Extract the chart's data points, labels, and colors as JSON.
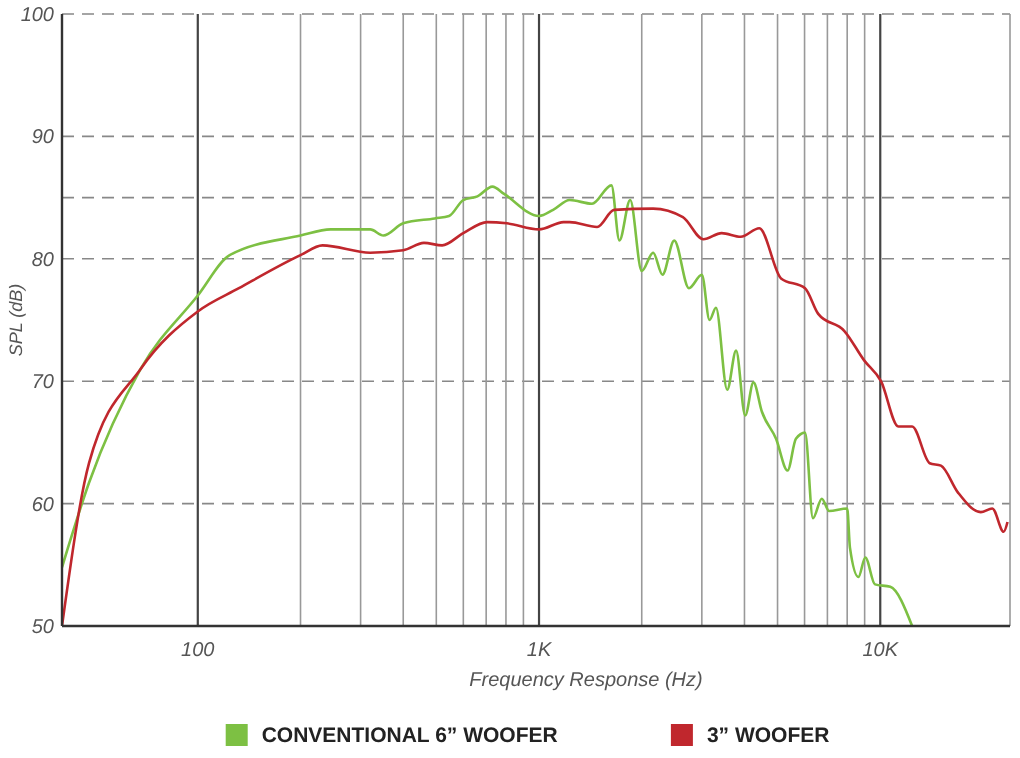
{
  "chart_data": {
    "type": "line",
    "xlabel": "Frequency Response (Hz)",
    "ylabel": "SPL (dB)",
    "log": "x",
    "grid": true,
    "legend": "bottom",
    "marker": "none",
    "line_style": "solid",
    "xlim": [
      40,
      24000
    ],
    "ylim": [
      50,
      100
    ],
    "xticks": [
      {
        "value": 100,
        "label": "100"
      },
      {
        "value": 200,
        "label": null
      },
      {
        "value": 300,
        "label": null
      },
      {
        "value": 400,
        "label": null
      },
      {
        "value": 500,
        "label": null
      },
      {
        "value": 600,
        "label": null
      },
      {
        "value": 700,
        "label": null
      },
      {
        "value": 800,
        "label": null
      },
      {
        "value": 900,
        "label": null
      },
      {
        "value": 1000,
        "label": "1K"
      },
      {
        "value": 2000,
        "label": null
      },
      {
        "value": 3000,
        "label": null
      },
      {
        "value": 4000,
        "label": null
      },
      {
        "value": 5000,
        "label": null
      },
      {
        "value": 6000,
        "label": null
      },
      {
        "value": 7000,
        "label": null
      },
      {
        "value": 8000,
        "label": null
      },
      {
        "value": 9000,
        "label": null
      },
      {
        "value": 10000,
        "label": "10K"
      }
    ],
    "yticks": [
      50,
      60,
      70,
      80,
      {
        "value": 85,
        "label": null
      },
      90,
      100
    ],
    "series": [
      {
        "name": "CONVENTIONAL 6” WOOFER",
        "color": "#7dc043",
        "x": [
          40,
          48,
          68,
          100,
          124,
          200,
          245,
          320,
          350,
          400,
          495,
          545,
          600,
          660,
          730,
          790,
          1000,
          1100,
          1230,
          1430,
          1630,
          1720,
          1850,
          2000,
          2160,
          2300,
          2490,
          2750,
          3000,
          3160,
          3300,
          3560,
          3780,
          4020,
          4250,
          4500,
          4950,
          5350,
          5660,
          6020,
          6350,
          6740,
          7080,
          8000,
          8150,
          8630,
          9040,
          9650,
          10700,
          12400
        ],
        "values": [
          54.8,
          61.7,
          71,
          77,
          80.3,
          81.9,
          82.4,
          82.4,
          81.9,
          82.9,
          83.3,
          83.5,
          84.8,
          85.1,
          85.9,
          85.3,
          83.5,
          84,
          84.8,
          84.5,
          86,
          81.5,
          84.8,
          79,
          80.5,
          78.7,
          81.5,
          77.6,
          78.7,
          75,
          76,
          69.3,
          72.5,
          67.2,
          69.9,
          67.5,
          65.3,
          62.7,
          65.3,
          65.8,
          58.8,
          60.4,
          59.4,
          59.6,
          56.4,
          54,
          55.6,
          53.4,
          53.2,
          50
        ]
      },
      {
        "name": "3” WOOFER",
        "color": "#c0272d",
        "x": [
          40,
          48,
          68,
          100,
          132,
          200,
          232,
          320,
          400,
          460,
          520,
          600,
          705,
          805,
          1000,
          1180,
          1230,
          1480,
          1660,
          2160,
          2640,
          3030,
          3430,
          3900,
          4420,
          5120,
          6020,
          6580,
          7850,
          8970,
          10050,
          11300,
          12400,
          13960,
          15060,
          16900,
          19700,
          21300,
          23000,
          23600
        ],
        "values": [
          50,
          63.3,
          71,
          75.7,
          77.6,
          80.3,
          81.1,
          80.5,
          80.7,
          81.3,
          81.1,
          82.1,
          83,
          82.9,
          82.4,
          83,
          83,
          82.6,
          84,
          84.1,
          83.4,
          81.6,
          82.1,
          81.8,
          82.5,
          78.4,
          77.6,
          75.5,
          74.1,
          71.7,
          70,
          66.3,
          66.3,
          63.3,
          63.1,
          60.9,
          59.3,
          59.6,
          57.7,
          58.5
        ]
      }
    ]
  }
}
